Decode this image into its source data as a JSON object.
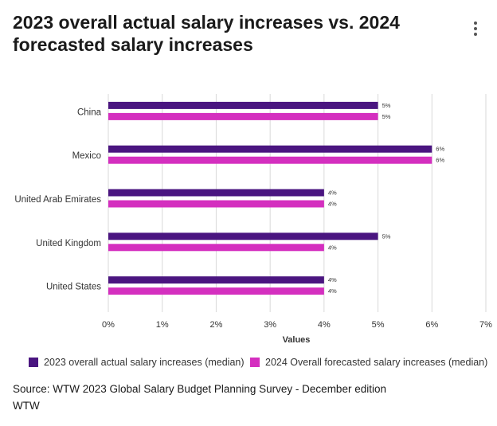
{
  "header": {
    "title": "2023 overall actual salary increases vs. 2024 forecasted salary increases",
    "menu_icon": "more-vertical-icon"
  },
  "colors": {
    "series_2023": "#4a1580",
    "series_2024": "#d42fbf",
    "grid": "#d9d9d9",
    "axis_text": "#333333"
  },
  "chart_data": {
    "type": "bar",
    "orientation": "horizontal",
    "title": "2023 overall actual salary increases vs. 2024 forecasted salary increases",
    "categories": [
      "China",
      "Mexico",
      "United Arab Emirates",
      "United Kingdom",
      "United States"
    ],
    "series": [
      {
        "name": "2023 overall actual salary increases (median)",
        "values": [
          5,
          6,
          4,
          5,
          4
        ],
        "labels": [
          "5%",
          "6%",
          "4%",
          "5%",
          "4%"
        ]
      },
      {
        "name": "2024 Overall forecasted salary increases (median)",
        "values": [
          5,
          6,
          4,
          4,
          4
        ],
        "labels": [
          "5%",
          "6%",
          "4%",
          "4%",
          "4%"
        ]
      }
    ],
    "xlabel": "Values",
    "ylabel": "",
    "xlim": [
      0,
      7
    ],
    "xticks": [
      "0%",
      "1%",
      "2%",
      "3%",
      "4%",
      "5%",
      "6%",
      "7%"
    ],
    "grid": true,
    "legend_position": "bottom"
  },
  "footer": {
    "source": "Source: WTW 2023 Global Salary Budget Planning Survey - December edition",
    "credit": "WTW"
  }
}
